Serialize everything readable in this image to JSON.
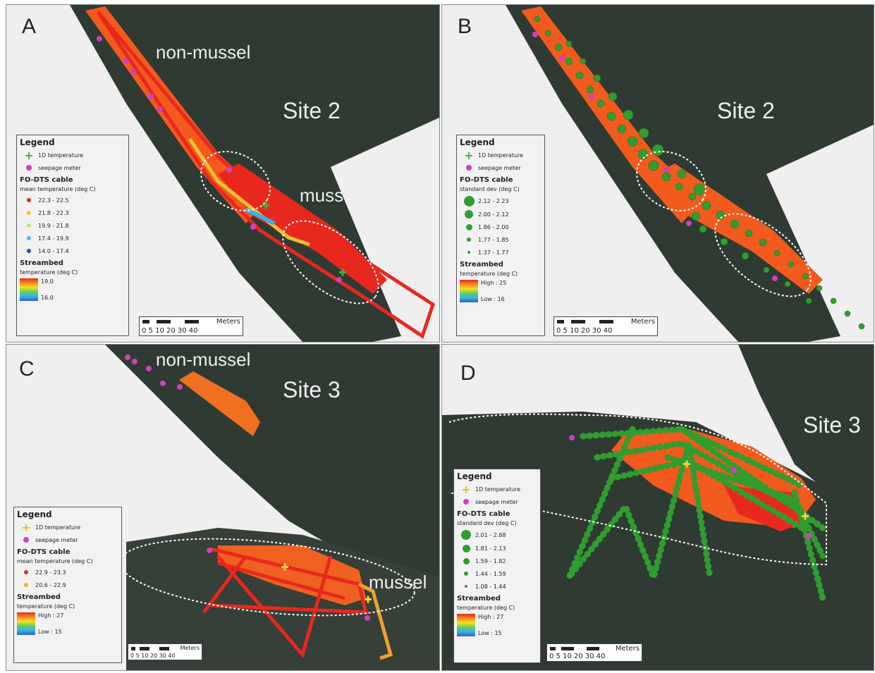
{
  "panels": {
    "A": {
      "letter": "A",
      "site": "Site 2",
      "zone_top": "non-mussel",
      "zone_bottom": "mussel",
      "legend": {
        "title": "Legend",
        "item1": "1D temperature",
        "item2": "seepage meter",
        "cable_title": "FO-DTS cable",
        "cable_subtitle": "mean temperature (deg C)",
        "classes": [
          "22.3 - 22.5",
          "21.8 - 22.3",
          "19.9 - 21.8",
          "17.4 - 19.9",
          "14.0 - 17.4"
        ],
        "streambed_title": "Streambed",
        "streambed_subtitle": "temperature (deg C)",
        "ramp_high": "19.0",
        "ramp_low": "16.0"
      },
      "scale": {
        "unit": "Meters",
        "ticks": "0 5 10  20   30   40"
      }
    },
    "B": {
      "letter": "B",
      "site": "Site 2",
      "legend": {
        "title": "Legend",
        "item1": "1D temperature",
        "item2": "seepage meter",
        "cable_title": "FO-DTS cable",
        "cable_subtitle": "standard dev (deg C)",
        "classes": [
          "2.12 - 2.23",
          "2.00 - 2.12",
          "1.86 - 2.00",
          "1.77 - 1.85",
          "1.37 - 1.77"
        ],
        "streambed_title": "Streambed",
        "streambed_subtitle": "temperature (deg C)",
        "ramp_high": "High : 25",
        "ramp_low": "Low : 16"
      },
      "scale": {
        "unit": "Meters",
        "ticks": "0 5 10  20   30   40"
      }
    },
    "C": {
      "letter": "C",
      "site": "Site 3",
      "zone_top": "non-mussel",
      "zone_bottom": "mussel",
      "legend": {
        "title": "Legend",
        "item1": "1D temperature",
        "item2": "seepage meter",
        "cable_title": "FO-DTS cable",
        "cable_subtitle": "mean temperature (deg C)",
        "classes": [
          "22.9 - 23.3",
          "20.6 - 22.9"
        ],
        "streambed_title": "Streambed",
        "streambed_subtitle": "temperature (deg C)",
        "ramp_high": "High : 27",
        "ramp_low": "Low : 15"
      },
      "scale": {
        "unit": "Meters",
        "ticks": "0 5 10  20  30  40"
      }
    },
    "D": {
      "letter": "D",
      "site": "Site 3",
      "legend": {
        "title": "Legend",
        "item1": "1D temperature",
        "item2": "seepage meter",
        "cable_title": "FO-DTS cable",
        "cable_subtitle": "standard dev (deg C)",
        "classes": [
          "2.01 - 2.88",
          "1.81 - 2.13",
          "1.59 - 1.82",
          "1.44 - 1.59",
          "1.08 - 1.44"
        ],
        "streambed_title": "Streambed",
        "streambed_subtitle": "temperature (deg C)",
        "ramp_high": "High : 27",
        "ramp_low": "Low : 15"
      },
      "scale": {
        "unit": "Meters",
        "ticks": "0 5 10   20   30   40"
      }
    }
  },
  "colors": {
    "river": "#2f3a33",
    "bank": "#efefef",
    "cable_red": "#e8281e",
    "cable_orange": "#f07020",
    "cable_yellow": "#f0c030",
    "node_green": "#2f9e2f",
    "seepage": "#d040c0",
    "zone_outline": "#ffffff"
  }
}
